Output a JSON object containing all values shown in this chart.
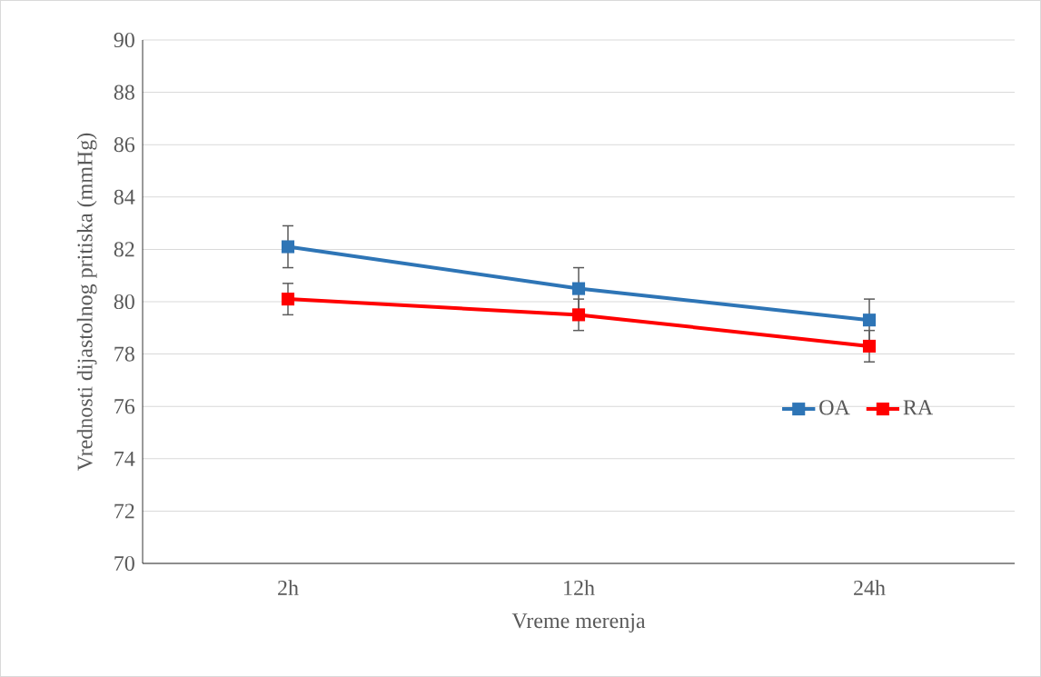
{
  "chart_data": {
    "type": "line",
    "xlabel": "Vreme merenja",
    "ylabel": "Vrednosti dijastolnog pritiska (mmHg)",
    "categories": [
      "2h",
      "12h",
      "24h"
    ],
    "series": [
      {
        "name": "OA",
        "color": "#2e75b6",
        "values": [
          82.1,
          80.5,
          79.3
        ],
        "errors": [
          0.8,
          0.8,
          0.8
        ]
      },
      {
        "name": "RA",
        "color": "#ff0000",
        "values": [
          80.1,
          79.5,
          78.3
        ],
        "errors": [
          0.6,
          0.6,
          0.6
        ]
      }
    ],
    "ylim": [
      70,
      90
    ],
    "yticks": [
      70,
      72,
      74,
      76,
      78,
      80,
      82,
      84,
      86,
      88,
      90
    ],
    "grid": "y",
    "legend": "right",
    "marker": "square",
    "line_style": "solid"
  }
}
